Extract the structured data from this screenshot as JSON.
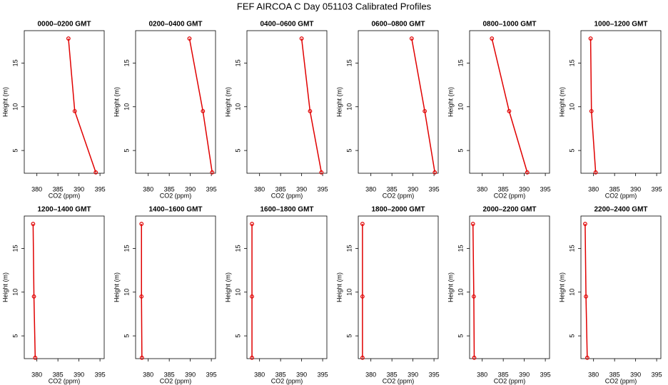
{
  "title": "FEF AIRCOA C  Day 051103  Calibrated Profiles",
  "chart_data": [
    {
      "type": "line",
      "title": "0000–0200 GMT",
      "x": [
        394,
        389,
        387.5
      ],
      "values": [
        2.5,
        9.5,
        17.8
      ],
      "color": "#e00000",
      "xlabel": "CO2 (ppm)",
      "ylabel": "Height (m)",
      "xlim": [
        377,
        396
      ],
      "xticks": [
        380,
        385,
        390,
        395
      ],
      "ylim": [
        2.4,
        18.7
      ],
      "yticks": [
        5,
        10,
        15
      ]
    },
    {
      "type": "line",
      "title": "0200–0400 GMT",
      "x": [
        395.2,
        393,
        389.8
      ],
      "values": [
        2.5,
        9.5,
        17.8
      ],
      "color": "#e00000",
      "xlabel": "CO2 (ppm)",
      "ylabel": "Height (m)",
      "xlim": [
        377,
        396
      ],
      "xticks": [
        380,
        385,
        390,
        395
      ],
      "ylim": [
        2.4,
        18.7
      ],
      "yticks": [
        5,
        10,
        15
      ]
    },
    {
      "type": "line",
      "title": "0400–0600 GMT",
      "x": [
        394.7,
        392,
        390
      ],
      "values": [
        2.5,
        9.5,
        17.8
      ],
      "color": "#e00000",
      "xlabel": "CO2 (ppm)",
      "ylabel": "Height (m)",
      "xlim": [
        377,
        396
      ],
      "xticks": [
        380,
        385,
        390,
        395
      ],
      "ylim": [
        2.4,
        18.7
      ],
      "yticks": [
        5,
        10,
        15
      ]
    },
    {
      "type": "line",
      "title": "0600–0800 GMT",
      "x": [
        395.2,
        392.8,
        389.7
      ],
      "values": [
        2.5,
        9.5,
        17.8
      ],
      "color": "#e00000",
      "xlabel": "CO2 (ppm)",
      "ylabel": "Height (m)",
      "xlim": [
        377,
        396
      ],
      "xticks": [
        380,
        385,
        390,
        395
      ],
      "ylim": [
        2.4,
        18.7
      ],
      "yticks": [
        5,
        10,
        15
      ]
    },
    {
      "type": "line",
      "title": "0800–1000 GMT",
      "x": [
        390.7,
        386.4,
        382.3
      ],
      "values": [
        2.5,
        9.5,
        17.8
      ],
      "color": "#e00000",
      "xlabel": "CO2 (ppm)",
      "ylabel": "Height (m)",
      "xlim": [
        377,
        396
      ],
      "xticks": [
        380,
        385,
        390,
        395
      ],
      "ylim": [
        2.4,
        18.7
      ],
      "yticks": [
        5,
        10,
        15
      ]
    },
    {
      "type": "line",
      "title": "1000–1200 GMT",
      "x": [
        380.5,
        379.5,
        379.3
      ],
      "values": [
        2.5,
        9.5,
        17.8
      ],
      "color": "#e00000",
      "xlabel": "CO2 (ppm)",
      "ylabel": "Height (m)",
      "xlim": [
        377,
        396
      ],
      "xticks": [
        380,
        385,
        390,
        395
      ],
      "ylim": [
        2.4,
        18.7
      ],
      "yticks": [
        5,
        10,
        15
      ]
    },
    {
      "type": "line",
      "title": "1200–1400 GMT",
      "x": [
        379.6,
        379.3,
        379.1
      ],
      "values": [
        2.5,
        9.5,
        17.8
      ],
      "color": "#e00000",
      "xlabel": "CO2 (ppm)",
      "ylabel": "Height (m)",
      "xlim": [
        377,
        396
      ],
      "xticks": [
        380,
        385,
        390,
        395
      ],
      "ylim": [
        2.4,
        18.7
      ],
      "yticks": [
        5,
        10,
        15
      ]
    },
    {
      "type": "line",
      "title": "1400–1600 GMT",
      "x": [
        378.5,
        378.4,
        378.4
      ],
      "values": [
        2.5,
        9.5,
        17.8
      ],
      "color": "#e00000",
      "xlabel": "CO2 (ppm)",
      "ylabel": "Height (m)",
      "xlim": [
        377,
        396
      ],
      "xticks": [
        380,
        385,
        390,
        395
      ],
      "ylim": [
        2.4,
        18.7
      ],
      "yticks": [
        5,
        10,
        15
      ]
    },
    {
      "type": "line",
      "title": "1600–1800 GMT",
      "x": [
        378.2,
        378.2,
        378.2
      ],
      "values": [
        2.5,
        9.5,
        17.8
      ],
      "color": "#e00000",
      "xlabel": "CO2 (ppm)",
      "ylabel": "Height (m)",
      "xlim": [
        377,
        396
      ],
      "xticks": [
        380,
        385,
        390,
        395
      ],
      "ylim": [
        2.4,
        18.7
      ],
      "yticks": [
        5,
        10,
        15
      ]
    },
    {
      "type": "line",
      "title": "1800–2000 GMT",
      "x": [
        378,
        378,
        378
      ],
      "values": [
        2.5,
        9.5,
        17.8
      ],
      "color": "#e00000",
      "xlabel": "CO2 (ppm)",
      "ylabel": "Height (m)",
      "xlim": [
        377,
        396
      ],
      "xticks": [
        380,
        385,
        390,
        395
      ],
      "ylim": [
        2.4,
        18.7
      ],
      "yticks": [
        5,
        10,
        15
      ]
    },
    {
      "type": "line",
      "title": "2000–2200 GMT",
      "x": [
        378.1,
        378,
        377.8
      ],
      "values": [
        2.5,
        9.5,
        17.8
      ],
      "color": "#e00000",
      "xlabel": "CO2 (ppm)",
      "ylabel": "Height (m)",
      "xlim": [
        377,
        396
      ],
      "xticks": [
        380,
        385,
        390,
        395
      ],
      "ylim": [
        2.4,
        18.7
      ],
      "yticks": [
        5,
        10,
        15
      ]
    },
    {
      "type": "line",
      "title": "2200–2400 GMT",
      "x": [
        378.5,
        378.2,
        378
      ],
      "values": [
        2.5,
        9.5,
        17.8
      ],
      "color": "#e00000",
      "xlabel": "CO2 (ppm)",
      "ylabel": "Height (m)",
      "xlim": [
        377,
        396
      ],
      "xticks": [
        380,
        385,
        390,
        395
      ],
      "ylim": [
        2.4,
        18.7
      ],
      "yticks": [
        5,
        10,
        15
      ]
    }
  ]
}
